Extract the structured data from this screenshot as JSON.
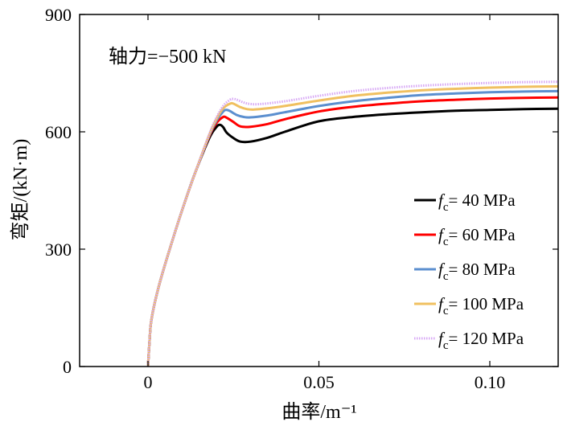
{
  "chart_data": {
    "type": "line",
    "title": "",
    "annotation": "轴力=−500 kN",
    "xlabel": "曲率/m⁻¹",
    "ylabel": "弯矩/(kN·m)",
    "xlim": [
      -0.02,
      0.12
    ],
    "ylim": [
      0,
      900
    ],
    "xticks": [
      {
        "value": 0,
        "label": "0"
      },
      {
        "value": 0.05,
        "label": "0.05"
      },
      {
        "value": 0.1,
        "label": "0.10"
      }
    ],
    "yticks": [
      {
        "value": 0,
        "label": "0"
      },
      {
        "value": 300,
        "label": "300"
      },
      {
        "value": 600,
        "label": "600"
      },
      {
        "value": 900,
        "label": "900"
      }
    ],
    "grid": false,
    "legend_position": "bottom-right",
    "legend_prefix": "f",
    "legend_subscript": "c",
    "series": [
      {
        "name": "40 MPa",
        "label": "= 40 MPa",
        "color": "#000000",
        "style": "solid",
        "x": [
          0,
          0.0005,
          0.001,
          0.003,
          0.006,
          0.01,
          0.014,
          0.018,
          0.02,
          0.021,
          0.022,
          0.023,
          0.025,
          0.027,
          0.03,
          0.035,
          0.04,
          0.05,
          0.06,
          0.07,
          0.08,
          0.09,
          0.1,
          0.11,
          0.12
        ],
        "y": [
          0,
          70,
          120,
          200,
          290,
          400,
          500,
          585,
          612,
          618,
          612,
          598,
          584,
          575,
          575,
          585,
          600,
          627,
          638,
          645,
          650,
          654,
          656,
          658,
          659
        ]
      },
      {
        "name": "60 MPa",
        "label": "= 60 MPa",
        "color": "#ff0000",
        "style": "solid",
        "x": [
          0,
          0.0005,
          0.001,
          0.003,
          0.006,
          0.01,
          0.014,
          0.018,
          0.02,
          0.022,
          0.023,
          0.025,
          0.027,
          0.03,
          0.035,
          0.04,
          0.05,
          0.06,
          0.07,
          0.08,
          0.09,
          0.1,
          0.11,
          0.12
        ],
        "y": [
          0,
          70,
          120,
          200,
          290,
          400,
          500,
          590,
          622,
          638,
          636,
          625,
          614,
          613,
          620,
          632,
          652,
          664,
          672,
          678,
          682,
          685,
          687,
          688
        ]
      },
      {
        "name": "80 MPa",
        "label": "= 80 MPa",
        "color": "#5b8fcf",
        "style": "solid",
        "x": [
          0,
          0.0005,
          0.001,
          0.003,
          0.006,
          0.01,
          0.014,
          0.018,
          0.02,
          0.022,
          0.023,
          0.024,
          0.026,
          0.028,
          0.03,
          0.035,
          0.04,
          0.05,
          0.06,
          0.07,
          0.08,
          0.09,
          0.1,
          0.11,
          0.12
        ],
        "y": [
          0,
          70,
          120,
          200,
          290,
          400,
          500,
          592,
          628,
          652,
          656,
          653,
          643,
          638,
          637,
          642,
          650,
          666,
          678,
          687,
          694,
          698,
          701,
          703,
          704
        ]
      },
      {
        "name": "100 MPa",
        "label": "= 100 MPa",
        "color": "#f0c060",
        "style": "solid",
        "x": [
          0,
          0.0005,
          0.001,
          0.003,
          0.006,
          0.01,
          0.014,
          0.018,
          0.02,
          0.022,
          0.024,
          0.025,
          0.027,
          0.029,
          0.031,
          0.035,
          0.04,
          0.05,
          0.06,
          0.07,
          0.08,
          0.09,
          0.1,
          0.11,
          0.12
        ],
        "y": [
          0,
          70,
          120,
          200,
          290,
          400,
          500,
          594,
          632,
          660,
          672,
          672,
          663,
          658,
          657,
          660,
          666,
          680,
          692,
          700,
          706,
          710,
          713,
          715,
          716
        ]
      },
      {
        "name": "120 MPa",
        "label": "= 120 MPa",
        "color": "#d7a8f5",
        "style": "dotted",
        "x": [
          0,
          0.0005,
          0.001,
          0.003,
          0.006,
          0.01,
          0.014,
          0.018,
          0.02,
          0.022,
          0.024,
          0.025,
          0.026,
          0.028,
          0.03,
          0.033,
          0.04,
          0.05,
          0.06,
          0.07,
          0.08,
          0.09,
          0.1,
          0.11,
          0.12
        ],
        "y": [
          0,
          70,
          120,
          200,
          290,
          400,
          500,
          596,
          636,
          666,
          682,
          684,
          682,
          675,
          671,
          671,
          678,
          692,
          704,
          712,
          718,
          722,
          725,
          727,
          728
        ]
      }
    ]
  }
}
